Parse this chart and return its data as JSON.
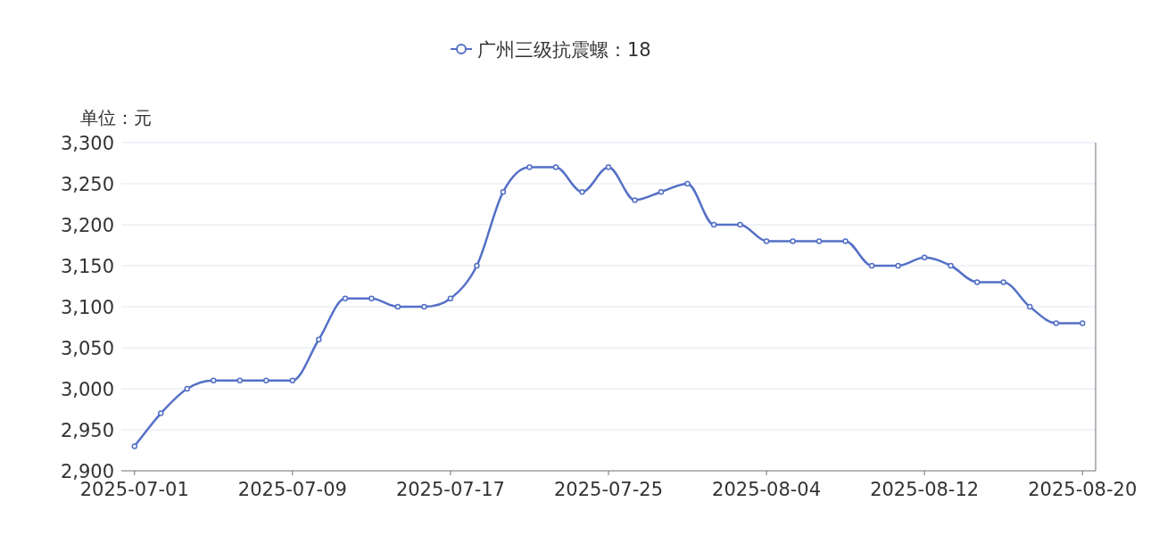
{
  "chart_data": {
    "type": "line",
    "ylabel": "单位：元",
    "categories": [
      "2025-07-01",
      null,
      null,
      null,
      null,
      null,
      "2025-07-09",
      null,
      null,
      null,
      null,
      null,
      "2025-07-17",
      null,
      null,
      null,
      null,
      null,
      "2025-07-25",
      null,
      null,
      null,
      null,
      null,
      "2025-08-04",
      null,
      null,
      null,
      null,
      null,
      "2025-08-12",
      null,
      null,
      null,
      null,
      null,
      "2025-08-20"
    ],
    "series": [
      {
        "name": "广州三级抗震螺：18",
        "color": "#5470c6",
        "values": [
          2930,
          2970,
          3000,
          3010,
          3010,
          3010,
          3010,
          3060,
          3110,
          3110,
          3100,
          3100,
          3110,
          3150,
          3240,
          3270,
          3270,
          3240,
          3270,
          3230,
          3240,
          3250,
          3200,
          3200,
          3180,
          3180,
          3180,
          3180,
          3150,
          3150,
          3160,
          3150,
          3130,
          3130,
          3100,
          3080,
          3080
        ]
      }
    ],
    "ylim": [
      2900,
      3300
    ],
    "yticks": [
      {
        "value": 2900,
        "label": "2,900"
      },
      {
        "value": 2950,
        "label": "2,950"
      },
      {
        "value": 3000,
        "label": "3,000"
      },
      {
        "value": 3050,
        "label": "3,050"
      },
      {
        "value": 3100,
        "label": "3,100"
      },
      {
        "value": 3150,
        "label": "3,150"
      },
      {
        "value": 3200,
        "label": "3,200"
      },
      {
        "value": 3250,
        "label": "3,250"
      },
      {
        "value": 3300,
        "label": "3,300"
      }
    ],
    "grid": "y",
    "legend": "top",
    "marker": "circle",
    "line_style": "solid"
  }
}
